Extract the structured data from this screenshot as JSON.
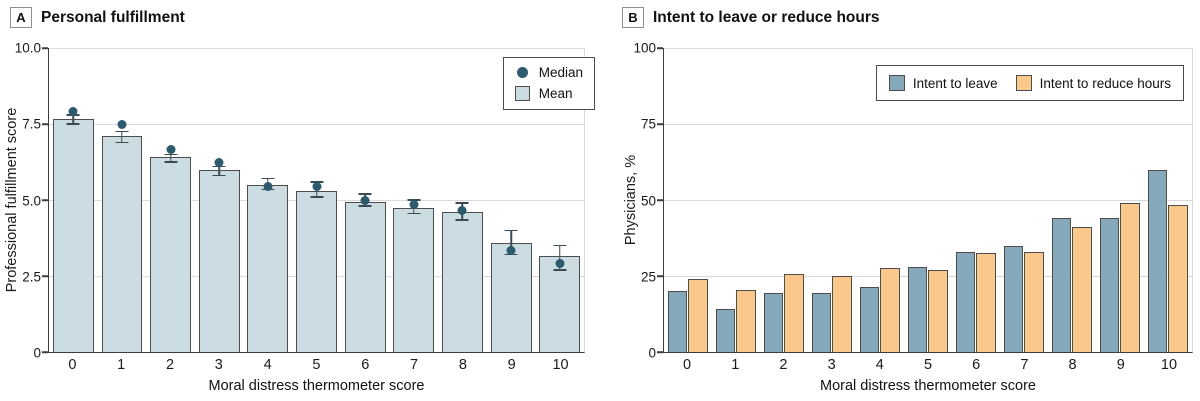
{
  "panels": [
    {
      "letter": "A",
      "title": "Personal fulfillment",
      "y_axis_label": "Professional fulfillment score",
      "x_axis_label": "Moral distress thermometer score",
      "legend": {
        "median_label": "Median",
        "mean_label": "Mean"
      }
    },
    {
      "letter": "B",
      "title": "Intent to leave or reduce hours",
      "y_axis_label": "Physicians, %",
      "x_axis_label": "Moral distress thermometer score",
      "legend": {
        "leave_label": "Intent to leave",
        "reduce_label": "Intent to reduce hours"
      }
    }
  ],
  "colors": {
    "mean_bar_fill": "#ccdce3",
    "median_dot": "#2d5b6d",
    "intent_leave_fill": "#85a9bb",
    "intent_reduce_fill": "#fbc88b",
    "bar_stroke": "#4d4d4d",
    "gridline": "#dadada",
    "axis": "#3d3d3d",
    "error_bar": "#3a4a52"
  },
  "chart_data": [
    {
      "type": "bar",
      "subtype": "bars-with-error-and-median",
      "title": "Personal fulfillment",
      "xlabel": "Moral distress thermometer score",
      "ylabel": "Professional fulfillment score",
      "ylim": [
        0,
        10
      ],
      "yticks": [
        0,
        2.5,
        5,
        7.5,
        10
      ],
      "ytick_labels": [
        "0",
        "2.5",
        "5.0",
        "7.5",
        "10.0"
      ],
      "grid": true,
      "legend_position": "top-right",
      "categories": [
        "0",
        "1",
        "2",
        "3",
        "4",
        "5",
        "6",
        "7",
        "8",
        "9",
        "10"
      ],
      "series": [
        {
          "name": "Mean",
          "values": [
            7.65,
            7.1,
            6.4,
            6.0,
            5.5,
            5.3,
            4.95,
            4.75,
            4.6,
            3.6,
            3.15
          ]
        },
        {
          "name": "Median",
          "values": [
            7.9,
            7.5,
            6.65,
            6.25,
            5.45,
            5.45,
            5.0,
            4.85,
            4.65,
            3.35,
            2.9
          ]
        }
      ],
      "error_low": [
        7.5,
        6.9,
        6.25,
        5.8,
        5.35,
        5.1,
        4.8,
        4.55,
        4.35,
        3.2,
        2.7
      ],
      "error_high": [
        7.8,
        7.25,
        6.5,
        6.1,
        5.7,
        5.6,
        5.2,
        5.0,
        4.9,
        4.0,
        3.5
      ]
    },
    {
      "type": "bar",
      "subtype": "grouped-bars",
      "title": "Intent to leave or reduce hours",
      "xlabel": "Moral distress thermometer score",
      "ylabel": "Physicians, %",
      "ylim": [
        0,
        100
      ],
      "yticks": [
        0,
        25,
        50,
        75,
        100
      ],
      "ytick_labels": [
        "0",
        "25",
        "50",
        "75",
        "100"
      ],
      "grid": true,
      "legend_position": "top-right",
      "categories": [
        "0",
        "1",
        "2",
        "3",
        "4",
        "5",
        "6",
        "7",
        "8",
        "9",
        "10"
      ],
      "series": [
        {
          "name": "Intent to leave",
          "values": [
            20,
            14,
            19.5,
            19.5,
            21.5,
            28,
            33,
            35,
            44,
            44,
            60
          ]
        },
        {
          "name": "Intent to reduce hours",
          "values": [
            24,
            20.5,
            25.5,
            25,
            27.5,
            27,
            32.5,
            33,
            41,
            49,
            48.5
          ]
        }
      ]
    }
  ]
}
